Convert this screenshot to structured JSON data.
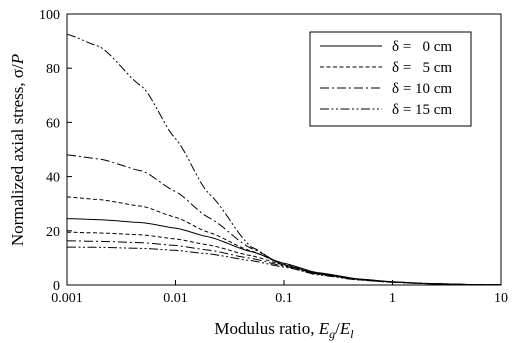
{
  "chart_data": {
    "type": "line",
    "x_scale": "log",
    "xlim": [
      0.001,
      10
    ],
    "ylim": [
      0,
      100
    ],
    "x_ticks": [
      "0.001",
      "0.01",
      "0.1",
      "1",
      "10"
    ],
    "y_ticks": [
      "0",
      "20",
      "40",
      "60",
      "80",
      "100"
    ],
    "xlabel": {
      "prefix": "Modulus ratio, ",
      "var1": "E",
      "sub1": "g",
      "slash": "/",
      "var2": "E",
      "sub2": "l"
    },
    "ylabel": {
      "prefix": "Normalized axial stress, σ/",
      "var": "P"
    },
    "legend_position": "top-right",
    "grid": false,
    "x": [
      0.001,
      0.002,
      0.005,
      0.01,
      0.02,
      0.05,
      0.1,
      0.2,
      0.5,
      1,
      2,
      5,
      10
    ],
    "series": [
      {
        "name": "δ =   0 cm",
        "dash": "solid",
        "values": [
          24.5,
          24.1,
          23.0,
          21.0,
          17.8,
          12.3,
          8.0,
          4.6,
          2.2,
          1.2,
          0.6,
          0.2,
          0.05
        ]
      },
      {
        "name": "δ =   5 cm",
        "dash": "dash",
        "values": [
          32.5,
          31.5,
          29.0,
          25.0,
          19.5,
          12.5,
          7.6,
          4.2,
          2.0,
          1.1,
          0.55,
          0.18,
          0.05
        ]
      },
      {
        "name": "δ = 10 cm",
        "dash": "dashdot",
        "values": [
          48.0,
          46.5,
          42.0,
          34.5,
          25.0,
          13.5,
          7.4,
          4.0,
          1.9,
          1.0,
          0.5,
          0.15,
          0.04
        ]
      },
      {
        "name": "δ = 15 cm",
        "dash": "dashdotdot",
        "values": [
          92.5,
          88.0,
          73.0,
          54.0,
          34.0,
          14.0,
          7.0,
          3.8,
          1.8,
          1.0,
          0.5,
          0.15,
          0.04
        ]
      },
      {
        "name": "",
        "dash": "dash",
        "values": [
          19.5,
          19.2,
          18.5,
          17.0,
          14.8,
          10.8,
          7.4,
          4.4,
          2.1,
          1.15,
          0.58,
          0.2,
          0.05
        ]
      },
      {
        "name": "",
        "dash": "dashdot",
        "values": [
          16.3,
          16.1,
          15.6,
          14.6,
          12.9,
          9.8,
          7.0,
          4.3,
          2.1,
          1.1,
          0.56,
          0.2,
          0.05
        ]
      },
      {
        "name": "",
        "dash": "dashdotdot",
        "values": [
          14.0,
          13.9,
          13.5,
          12.8,
          11.5,
          9.0,
          6.6,
          4.2,
          2.0,
          1.1,
          0.55,
          0.2,
          0.05
        ]
      }
    ]
  }
}
